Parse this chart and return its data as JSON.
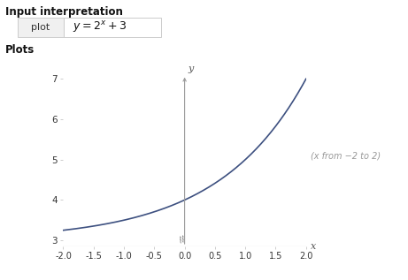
{
  "title_text": "Input interpretation",
  "plots_label": "Plots",
  "plot_label": "plot",
  "annotation": "(x from −2 to 2)",
  "x_min": -2.0,
  "x_max": 2.0,
  "y_min": 3.0,
  "y_max": 7.0,
  "x_ticks": [
    -2.0,
    -1.5,
    -1.0,
    -0.5,
    0.0,
    0.5,
    1.0,
    1.5,
    2.0
  ],
  "y_ticks": [
    3,
    4,
    5,
    6,
    7
  ],
  "curve_color": "#3d5080",
  "bg_color": "#ffffff",
  "axis_color": "#bbbbbb",
  "tick_label_color": "#333333",
  "header_color": "#111111"
}
